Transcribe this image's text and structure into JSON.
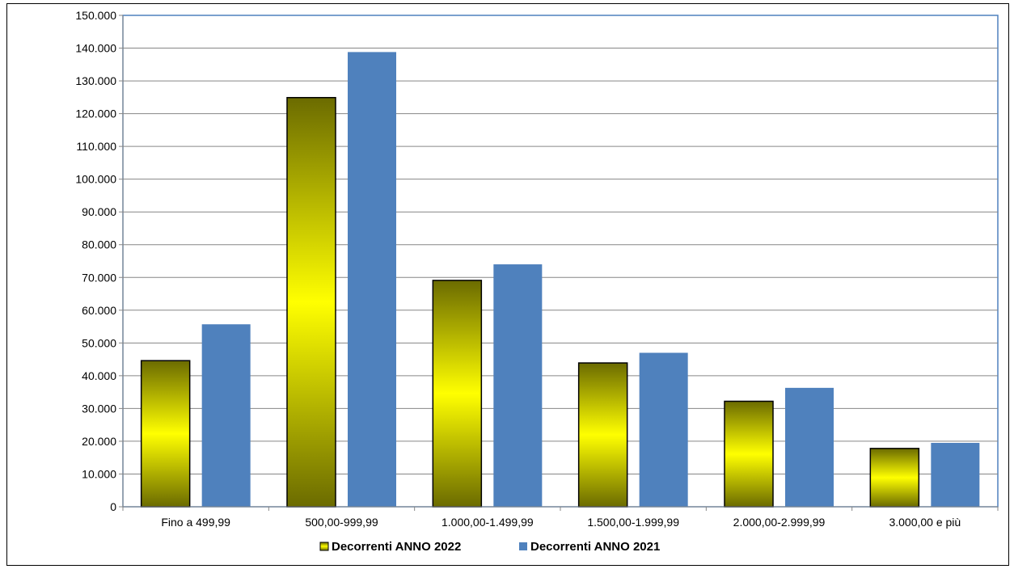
{
  "chart_data": {
    "type": "bar",
    "categories": [
      "Fino a 499,99",
      "500,00-999,99",
      "1.000,00-1.499,99",
      "1.500,00-1.999,99",
      "2.000,00-2.999,99",
      "3.000,00 e più"
    ],
    "series": [
      {
        "name": "Decorrenti ANNO 2022",
        "values": [
          44600,
          124900,
          69100,
          43900,
          32200,
          17800
        ],
        "color": "#ffff00",
        "gradient_edge_color": "#6b6b00"
      },
      {
        "name": "Decorrenti ANNO 2021",
        "values": [
          55700,
          138800,
          74000,
          47000,
          36300,
          19500
        ],
        "color": "#4f81bd"
      }
    ],
    "title": "",
    "xlabel": "",
    "ylabel": "",
    "ylim": [
      0,
      150000
    ],
    "ytick_step": 10000,
    "ytick_labels": [
      "0",
      "10.000",
      "20.000",
      "30.000",
      "40.000",
      "50.000",
      "60.000",
      "70.000",
      "80.000",
      "90.000",
      "100.000",
      "110.000",
      "120.000",
      "130.000",
      "140.000",
      "150.000"
    ],
    "grid": true,
    "legend_position": "bottom-center"
  }
}
